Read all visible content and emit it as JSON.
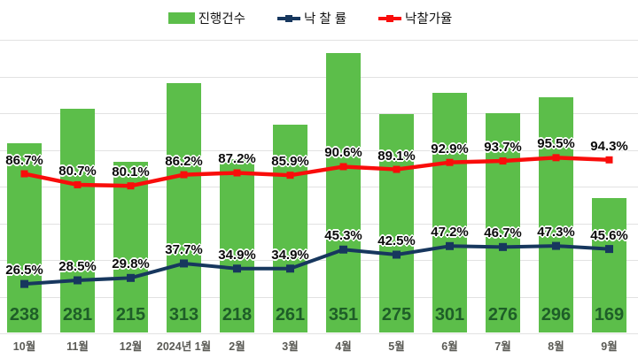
{
  "legend": {
    "bars_label": "진행건수",
    "rate_label": "낙 찰 률",
    "price_label": "낙찰가율"
  },
  "colors": {
    "bar": "#5cbe4a",
    "bar_label": "#1e5e28",
    "navy": "#17375e",
    "red": "#f90d0b",
    "grid": "#e2e2e2",
    "axis_label": "#5a5a55"
  },
  "chart_data": {
    "type": "bar",
    "subtype": "bar-with-two-percent-lines",
    "title": "",
    "categories": [
      "10월",
      "11월",
      "12월",
      "2024년 1월",
      "2월",
      "3월",
      "4월",
      "5월",
      "6월",
      "7월",
      "8월",
      "9월"
    ],
    "series": [
      {
        "name": "진행건수",
        "type": "bar",
        "values": [
          238,
          281,
          215,
          313,
          218,
          261,
          351,
          275,
          301,
          276,
          296,
          169
        ]
      },
      {
        "name": "낙 찰 률",
        "type": "line",
        "unit": "%",
        "values": [
          26.5,
          28.5,
          29.8,
          37.7,
          34.9,
          34.9,
          45.3,
          42.5,
          47.2,
          46.7,
          47.3,
          45.6
        ]
      },
      {
        "name": "낙찰가율",
        "type": "line",
        "unit": "%",
        "values": [
          86.7,
          80.7,
          80.1,
          86.2,
          87.2,
          85.9,
          90.6,
          89.1,
          92.9,
          93.7,
          95.5,
          94.3
        ]
      }
    ],
    "value_labels_visible": true,
    "grid": "horizontal",
    "legend_position": "top",
    "xlabel": "",
    "ylabel": ""
  }
}
